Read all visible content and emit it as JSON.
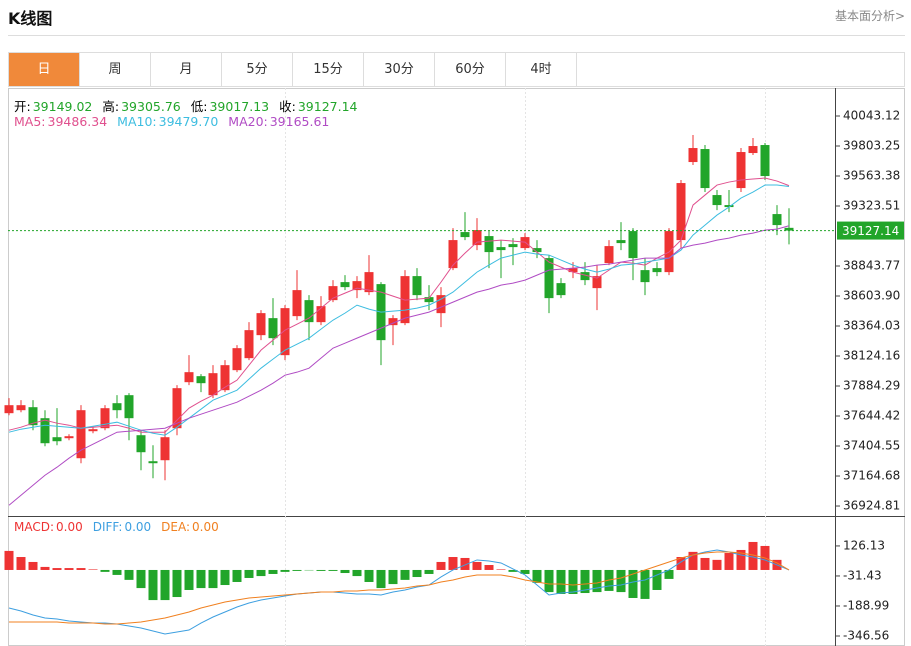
{
  "header": {
    "title": "K线图",
    "link": "基本面分析>"
  },
  "tabs": [
    "日",
    "周",
    "月",
    "5分",
    "15分",
    "30分",
    "60分",
    "4时"
  ],
  "active_tab": 0,
  "chart_data": [
    {
      "type": "candlestick",
      "up_color": "#ee3333",
      "down_color": "#22a52a",
      "ylim": [
        36845,
        40267
      ],
      "yticks": [
        40043.12,
        39803.25,
        39563.38,
        39323.51,
        38843.77,
        {
          "value": 38603.9,
          "label": "38603.90"
        },
        38364.03,
        38124.16,
        37884.29,
        37644.42,
        37404.55,
        37164.68,
        36924.81
      ],
      "info_labels": [
        "开:",
        "高:",
        "低:",
        "收:"
      ],
      "open": [
        37667,
        37691,
        37715,
        37627,
        37475,
        37467,
        37307,
        37523,
        37547,
        37747,
        37811,
        37491,
        37283,
        37291,
        37547,
        37915,
        37963,
        37811,
        37851,
        38011,
        38107,
        38291,
        38427,
        38131,
        38443,
        38571,
        38395,
        38571,
        38715,
        38651,
        38635,
        38699,
        38371,
        38387,
        38763,
        38595,
        38467,
        38827,
        39115,
        39011,
        39083,
        38995,
        39019,
        38987,
        38987,
        38907,
        38707,
        38795,
        38795,
        38667,
        38867,
        39051,
        39123,
        38811,
        38827,
        38795,
        39051,
        39675,
        39779,
        39411,
        39331,
        39467,
        39747,
        39811,
        39259,
        39149.02
      ],
      "high": [
        37787,
        37771,
        37771,
        37691,
        37707,
        37499,
        37731,
        37563,
        37731,
        37811,
        37827,
        37531,
        37411,
        37531,
        37891,
        38131,
        37979,
        38051,
        38091,
        38211,
        38395,
        38491,
        38587,
        38531,
        38811,
        38611,
        38603,
        38731,
        38771,
        38763,
        38931,
        38715,
        38451,
        38811,
        38827,
        38691,
        38675,
        39147,
        39275,
        39227,
        39131,
        39051,
        39067,
        39107,
        39051,
        38931,
        38747,
        38875,
        38875,
        38851,
        39051,
        39195,
        39147,
        38907,
        38875,
        39147,
        39531,
        39891,
        39811,
        39451,
        39451,
        39787,
        39867,
        39827,
        39331,
        39305.76
      ],
      "low": [
        37651,
        37675,
        37531,
        37403,
        37411,
        37451,
        37267,
        37507,
        37531,
        37627,
        37451,
        37211,
        37147,
        37131,
        37491,
        37891,
        37835,
        37787,
        37835,
        37995,
        38091,
        38251,
        38211,
        38091,
        38411,
        38251,
        38371,
        38555,
        38651,
        38587,
        38611,
        38051,
        38211,
        38371,
        38571,
        38491,
        38355,
        38811,
        39051,
        38971,
        38827,
        38747,
        38851,
        38971,
        38907,
        38467,
        38587,
        38747,
        38691,
        38491,
        38851,
        38971,
        38731,
        38611,
        38763,
        38771,
        38987,
        39651,
        39435,
        39291,
        39275,
        39435,
        39731,
        39531,
        39091,
        39017.13
      ],
      "close": [
        37731,
        37731,
        37571,
        37427,
        37443,
        37483,
        37691,
        37539,
        37707,
        37691,
        37627,
        37355,
        37267,
        37475,
        37867,
        37995,
        37907,
        37987,
        38051,
        38187,
        38331,
        38467,
        38267,
        38507,
        38651,
        38395,
        38523,
        38683,
        38675,
        38723,
        38795,
        38251,
        38427,
        38763,
        38611,
        38555,
        38611,
        39051,
        39075,
        39131,
        38955,
        38971,
        38995,
        39075,
        38955,
        38587,
        38611,
        38827,
        38731,
        38763,
        39003,
        39027,
        38907,
        38715,
        38795,
        39123,
        39507,
        39787,
        39467,
        39331,
        39315,
        39755,
        39803,
        39563,
        39171,
        39127.14
      ],
      "series": [
        {
          "name": "MA5:",
          "last_label": "39486.34",
          "color": "#e0508e",
          "values": [
            37531,
            37555,
            37587,
            37611,
            37587,
            37571,
            37547,
            37555,
            37563,
            37571,
            37547,
            37515,
            37515,
            37515,
            37611,
            37707,
            37763,
            37811,
            37875,
            37931,
            38051,
            38171,
            38251,
            38331,
            38379,
            38427,
            38507,
            38587,
            38627,
            38667,
            38651,
            38635,
            38603,
            38571,
            38579,
            38587,
            38715,
            38851,
            38947,
            39035,
            39043,
            39051,
            39043,
            39035,
            38955,
            38875,
            38835,
            38795,
            38771,
            38747,
            38811,
            38875,
            38867,
            38851,
            38907,
            38955,
            39051,
            39331,
            39411,
            39491,
            39515,
            39531,
            39539,
            39547,
            39523,
            39486.34
          ]
        },
        {
          "name": "MA10:",
          "last_label": "39479.70",
          "color": "#3dbde0",
          "values": [
            37515,
            37539,
            37555,
            37571,
            37563,
            37555,
            37547,
            37563,
            37579,
            37595,
            37563,
            37531,
            37507,
            37491,
            37555,
            37627,
            37699,
            37771,
            37811,
            37851,
            37939,
            38027,
            38099,
            38171,
            38219,
            38267,
            38339,
            38411,
            38467,
            38531,
            38499,
            38475,
            38483,
            38491,
            38507,
            38531,
            38579,
            38635,
            38715,
            38795,
            38851,
            38907,
            38931,
            38955,
            38939,
            38931,
            38891,
            38851,
            38819,
            38795,
            38819,
            38851,
            38859,
            38875,
            38891,
            38907,
            38971,
            39091,
            39171,
            39251,
            39315,
            39387,
            39435,
            39491,
            39491,
            39479.7
          ]
        },
        {
          "name": "MA20:",
          "last_label": "39165.61",
          "color": "#b04cc4",
          "values": [
            36931,
            37011,
            37091,
            37171,
            37235,
            37307,
            37371,
            37419,
            37467,
            37515,
            37523,
            37531,
            37539,
            37547,
            37587,
            37627,
            37659,
            37691,
            37723,
            37755,
            37803,
            37851,
            37907,
            37971,
            37995,
            38027,
            38107,
            38187,
            38227,
            38267,
            38307,
            38347,
            38387,
            38427,
            38451,
            38475,
            38515,
            38555,
            38595,
            38635,
            38659,
            38691,
            38707,
            38731,
            38771,
            38811,
            38819,
            38827,
            38835,
            38851,
            38859,
            38875,
            38891,
            38907,
            38907,
            38907,
            38987,
            39011,
            39027,
            39051,
            39067,
            39091,
            39107,
            39131,
            39139,
            39165.61
          ]
        }
      ]
    },
    {
      "type": "macd",
      "ylim": [
        -399,
        278
      ],
      "yticks": [
        126.13,
        -31.43,
        -188.99,
        -346.56
      ],
      "series": [
        {
          "name": "MACD:",
          "last_label": "0.00",
          "color": "#ee3333",
          "neg_color": "#22a52a",
          "values": [
            100,
            68,
            42,
            16,
            10,
            10,
            10,
            3,
            -10,
            -26,
            -52,
            -95,
            -158,
            -158,
            -142,
            -105,
            -95,
            -95,
            -79,
            -63,
            -42,
            -32,
            -21,
            -10,
            -5,
            -2,
            -5,
            -5,
            -16,
            -32,
            -63,
            -95,
            -74,
            -52,
            -37,
            -21,
            42,
            68,
            63,
            42,
            26,
            3,
            -10,
            -21,
            -68,
            -116,
            -126,
            -126,
            -121,
            -116,
            -110,
            -116,
            -147,
            -152,
            -105,
            -47,
            68,
            95,
            63,
            53,
            89,
            105,
            147,
            126,
            53,
            0
          ]
        },
        {
          "name": "DIFF:",
          "last_label": "0.00",
          "color": "#3d9fe0",
          "values": [
            -199.6,
            -215.3,
            -236.3,
            -252.1,
            -257.3,
            -267.9,
            -273.1,
            -278.4,
            -278.4,
            -283.6,
            -294.1,
            -304.6,
            -320.4,
            -336.1,
            -325.6,
            -315.1,
            -278.4,
            -246.8,
            -220.6,
            -194.3,
            -173.3,
            -157.6,
            -147.1,
            -136.6,
            -126,
            -120.8,
            -115.5,
            -115.5,
            -120.8,
            -126,
            -126,
            -131.3,
            -115.5,
            -105,
            -89.3,
            -78.8,
            -36.8,
            0,
            26.3,
            52.5,
            47.3,
            36.8,
            5.3,
            -26.3,
            -78.8,
            -131.3,
            -120.8,
            -115.5,
            -105,
            -94.5,
            -84,
            -78.8,
            -63,
            -52.5,
            -26.3,
            0,
            42,
            78.8,
            94.5,
            105,
            94.5,
            78.8,
            68.3,
            52.5,
            26.3,
            0
          ]
        },
        {
          "name": "DEA:",
          "last_label": "0.00",
          "color": "#f08020",
          "values": [
            -273.1,
            -273.1,
            -273.1,
            -273.1,
            -273.1,
            -278.4,
            -278.4,
            -278.4,
            -283.6,
            -283.6,
            -278.4,
            -273.1,
            -262.6,
            -252.1,
            -236.3,
            -220.6,
            -199.6,
            -183.8,
            -168.1,
            -157.6,
            -147.1,
            -141.8,
            -136.6,
            -131.3,
            -126,
            -120.8,
            -115.5,
            -115.5,
            -110.3,
            -110.3,
            -105,
            -105,
            -99.8,
            -94.5,
            -84,
            -78.8,
            -63,
            -52.5,
            -36.8,
            -26.3,
            -26.3,
            -26.3,
            -36.8,
            -52.5,
            -63,
            -73.5,
            -73.5,
            -78.8,
            -73.5,
            -68.3,
            -52.5,
            -42,
            -21,
            0,
            21,
            42,
            63,
            78.8,
            89.3,
            94.5,
            94.5,
            89.3,
            78.8,
            63,
            36.8,
            0
          ]
        }
      ]
    }
  ]
}
